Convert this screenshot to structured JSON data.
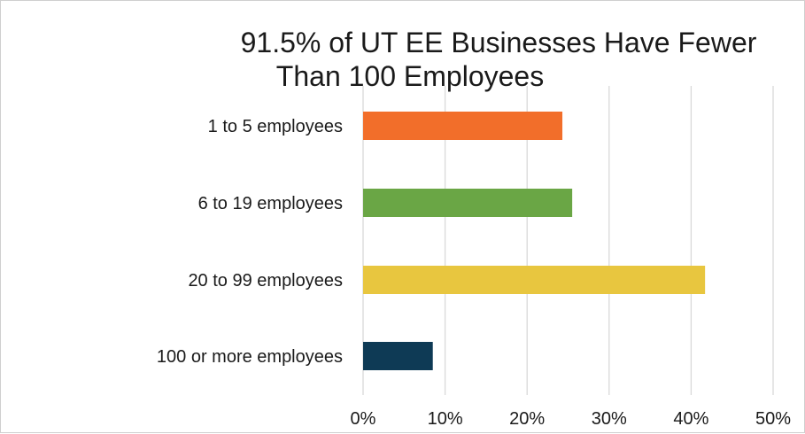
{
  "chart_data": {
    "type": "bar",
    "orientation": "horizontal",
    "title_lines": [
      "91.5% of UT EE Businesses Have Fewer",
      "Than 100 Employees"
    ],
    "categories": [
      "1 to 5 employees",
      "6 to 19 employees",
      "20 to 99 employees",
      "100 or more employees"
    ],
    "values": [
      0.243,
      0.255,
      0.417,
      0.085
    ],
    "colors": [
      "#F26E2A",
      "#6AA645",
      "#E8C63F",
      "#0E3A55"
    ],
    "xlim": [
      0,
      0.5
    ],
    "xticks": [
      0,
      0.1,
      0.2,
      0.3,
      0.4,
      0.5
    ],
    "xtick_labels": [
      "0%",
      "10%",
      "20%",
      "30%",
      "40%",
      "50%"
    ],
    "grid": true,
    "legend": false
  }
}
